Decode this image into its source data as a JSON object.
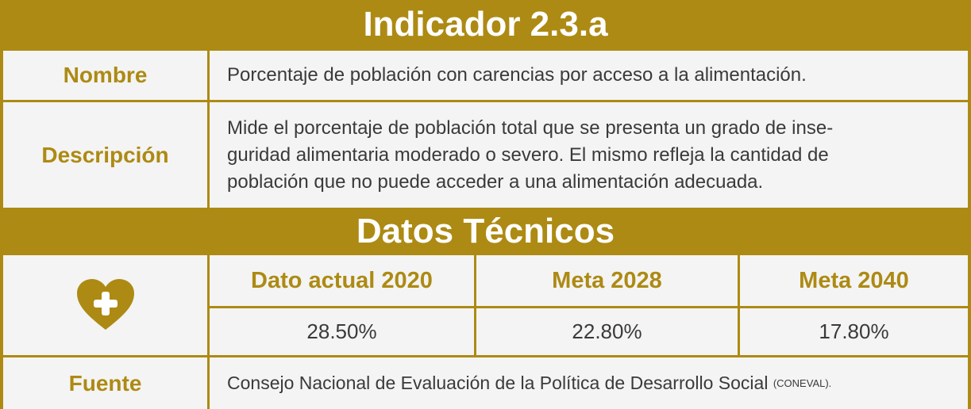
{
  "header": {
    "title": "Indicador 2.3.a"
  },
  "nombre": {
    "label": "Nombre",
    "text": "Porcentaje de población con carencias por acceso a la alimentación."
  },
  "descripcion": {
    "label": "Descripción",
    "lines": [
      "Mide el porcentaje de población total que se presenta un grado de inse-",
      "guridad alimentaria moderado o severo. El mismo refleja la cantidad de",
      "población que no puede acceder a una alimentación adecuada."
    ]
  },
  "datos": {
    "title": "Datos Técnicos",
    "headers": [
      "Dato actual 2020",
      "Meta 2028",
      "Meta 2040"
    ],
    "values": [
      "28.50%",
      "22.80%",
      "17.80%"
    ]
  },
  "fuente": {
    "label": "Fuente",
    "text": "Consejo Nacional de Evaluación de la Política de Desarrollo Social",
    "note": "(CONEVAL)."
  }
}
